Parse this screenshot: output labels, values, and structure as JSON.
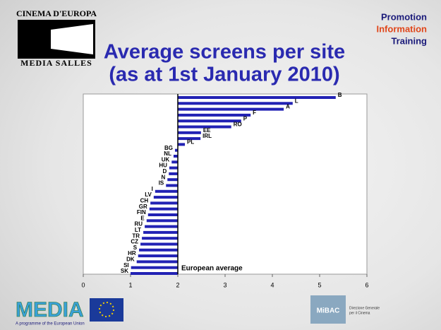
{
  "page": {
    "brand_top": "CINEMA D'EUROPA",
    "brand_bottom": "MEDIA SALLES",
    "tagline": [
      "Promotion",
      "Information",
      "Training"
    ],
    "media_logo": "MEDIA",
    "media_caption": "A programme of the European Union",
    "ministry_logo": "MiBAC",
    "ministry_caption": [
      "Direzione Generale",
      "per il Cinema"
    ]
  },
  "chart_data": {
    "type": "bar",
    "orientation": "horizontal",
    "title": "Average screens per site",
    "subtitle": "(as at 1st January 2010)",
    "categories": [
      "B",
      "L",
      "A",
      "F",
      "P",
      "RO",
      "EE",
      "IRL",
      "PL",
      "BG",
      "NL",
      "UK",
      "HU",
      "D",
      "N",
      "IS",
      "I",
      "LV",
      "CH",
      "GR",
      "FIN",
      "E",
      "RU",
      "LT",
      "TR",
      "CZ",
      "S",
      "HR",
      "DK",
      "SI",
      "SK"
    ],
    "values": [
      5.34,
      4.43,
      4.24,
      3.54,
      3.34,
      3.13,
      2.49,
      2.48,
      2.15,
      1.94,
      1.91,
      1.87,
      1.82,
      1.81,
      1.78,
      1.75,
      1.52,
      1.49,
      1.42,
      1.4,
      1.37,
      1.34,
      1.3,
      1.27,
      1.24,
      1.21,
      1.18,
      1.16,
      1.13,
      1.01,
      1.0
    ],
    "color": "#2222b4",
    "reference": 2,
    "reference_label": "European average",
    "xlim": [
      0,
      6
    ],
    "xticks": [
      0,
      1,
      2,
      3,
      4,
      5,
      6
    ]
  }
}
